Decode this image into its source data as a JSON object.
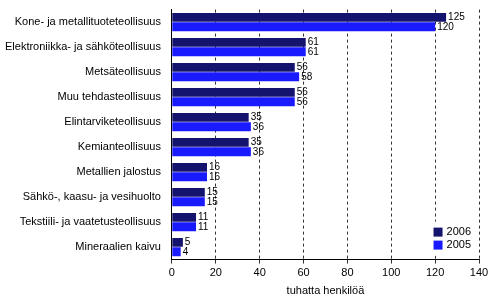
{
  "chart_data": {
    "type": "bar",
    "orientation": "horizontal",
    "categories": [
      "Kone- ja metallituoteteollisuus",
      "Elektroniikka- ja sähköteollisuus",
      "Metsäteollisuus",
      "Muu tehdasteollisuus",
      "Elintarviketeollisuus",
      "Kemianteollisuus",
      "Metallien jalostus",
      "Sähkö-, kaasu- ja vesihuolto",
      "Tekstiili- ja vaatetusteollisuus",
      "Mineraalien kaivu"
    ],
    "series": [
      {
        "name": "2006",
        "color": "#14146e",
        "values": [
          125,
          61,
          56,
          56,
          35,
          35,
          16,
          15,
          11,
          5
        ]
      },
      {
        "name": "2005",
        "color": "#1a1aff",
        "values": [
          120,
          61,
          58,
          56,
          36,
          36,
          16,
          15,
          11,
          4
        ]
      }
    ],
    "x_label": "tuhatta henkilöä",
    "xlim": [
      0,
      140
    ],
    "xticks": [
      0,
      20,
      40,
      60,
      80,
      100,
      120,
      140
    ],
    "grid": true,
    "data_labels": true,
    "legend": "lower right"
  }
}
